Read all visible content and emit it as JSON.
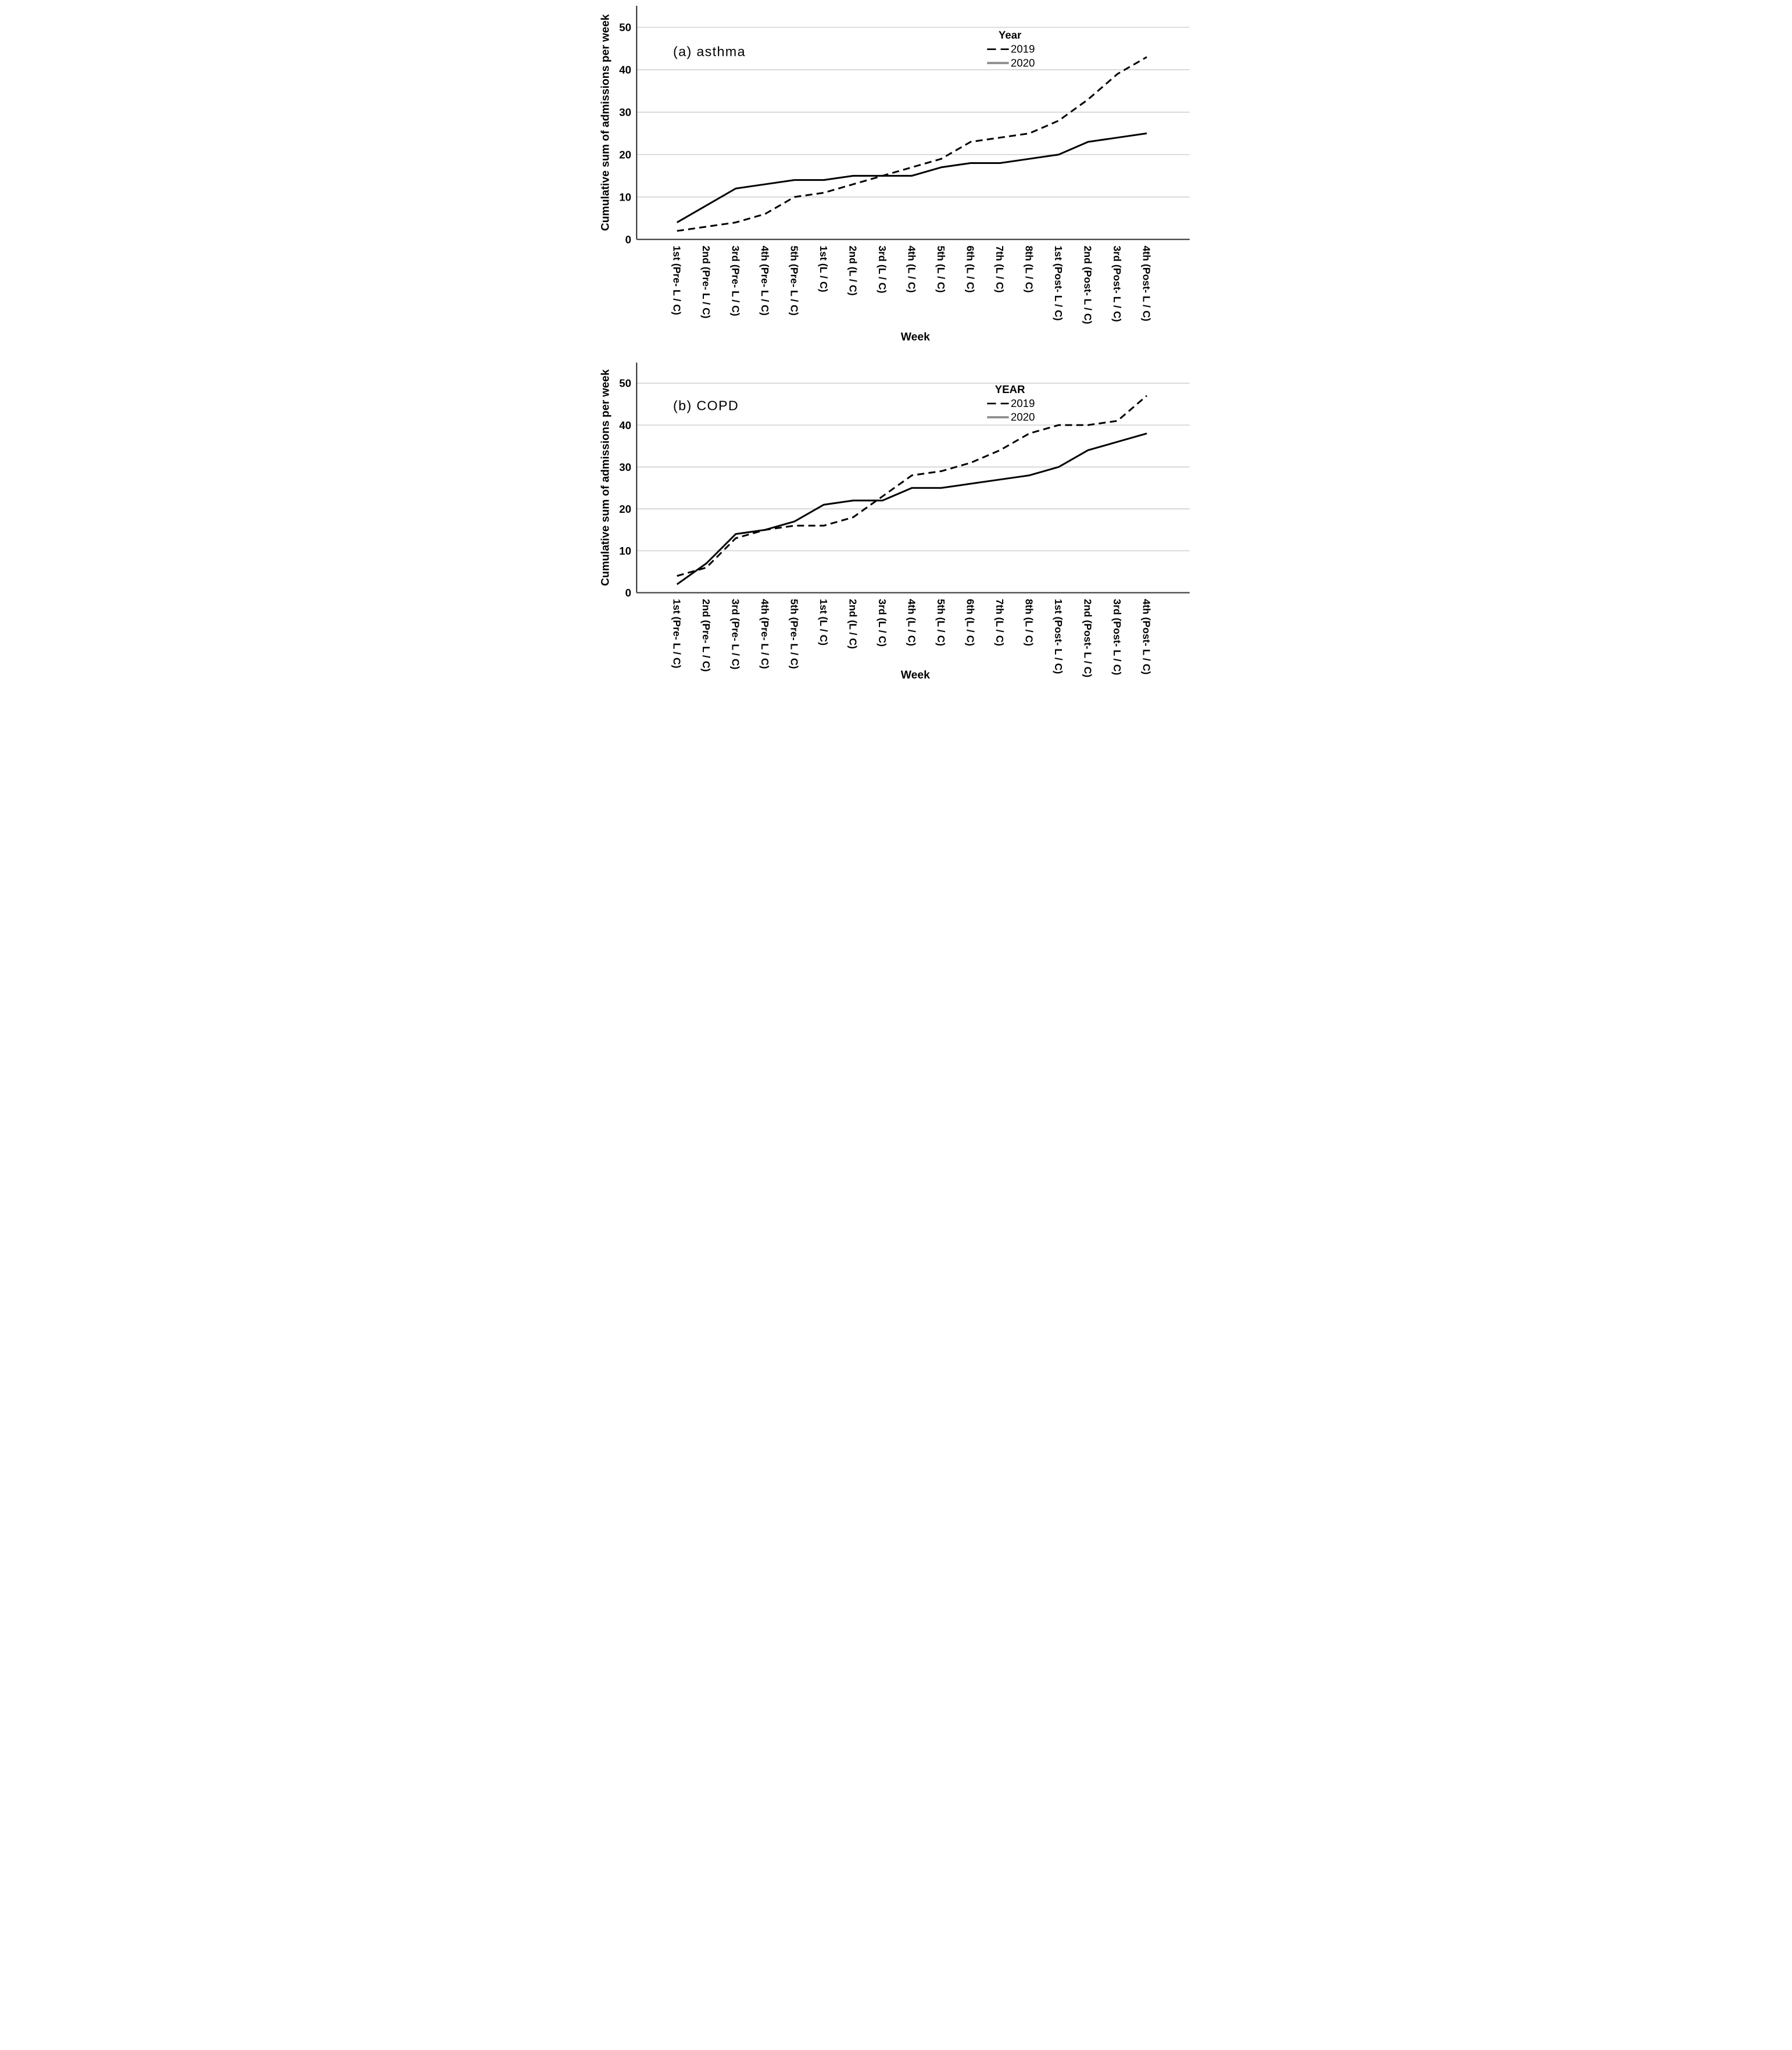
{
  "figure": {
    "description_visible_text_only": "Two stacked line charts comparing cumulative weekly admissions in 2019 vs 2020"
  },
  "chart_data": [
    {
      "type": "line",
      "panel_label": "(a) asthma",
      "legend_title": "Year",
      "xlabel": "Week",
      "ylabel": "Cumulative sum of admissions per week",
      "ylim": [
        0,
        55
      ],
      "y_ticks": [
        0,
        10,
        20,
        30,
        40,
        50
      ],
      "grid": "horizontal-gridlines-on",
      "legend_position": "inside-top-right",
      "categories": [
        "1st (Pre- L / C)",
        "2nd (Pre- L / C)",
        "3rd (Pre- L / C)",
        "4th (Pre- L / C)",
        "5th (Pre- L / C)",
        "1st (L / C)",
        "2nd (L / C)",
        "3rd (L / C)",
        "4th (L / C)",
        "5th (L / C)",
        "6th (L / C)",
        "7th (L / C)",
        "8th (L / C)",
        "1st (Post- L / C)",
        "2nd (Post- L / C)",
        "3rd (Post- L / C)",
        "4th (Post- L / C)"
      ],
      "series": [
        {
          "name": "2019",
          "line_style": "dashed",
          "color": "#000000",
          "legend_swatch_color": "#000000",
          "values": [
            2,
            3,
            4,
            6,
            10,
            11,
            13,
            15,
            17,
            19,
            23,
            24,
            25,
            28,
            33,
            39,
            43
          ]
        },
        {
          "name": "2020",
          "line_style": "solid",
          "color": "#000000",
          "legend_swatch_color": "#8a8a8a",
          "values": [
            4,
            8,
            12,
            13,
            14,
            14,
            15,
            15,
            15,
            17,
            18,
            18,
            19,
            20,
            23,
            24,
            25
          ]
        }
      ]
    },
    {
      "type": "line",
      "panel_label": "(b) COPD",
      "legend_title": "YEAR",
      "xlabel": "Week",
      "ylabel": "Cumulative sum of admissions per week",
      "ylim": [
        0,
        55
      ],
      "y_ticks": [
        0,
        10,
        20,
        30,
        40,
        50
      ],
      "grid": "horizontal-gridlines-on",
      "legend_position": "inside-top-right",
      "categories": [
        "1st (Pre- L / C)",
        "2nd (Pre- L / C)",
        "3rd (Pre- L / C)",
        "4th (Pre- L / C)",
        "5th (Pre- L / C)",
        "1st (L / C)",
        "2nd (L / C)",
        "3rd (L / C)",
        "4th (L / C)",
        "5th (L / C)",
        "6th (L / C)",
        "7th (L / C)",
        "8th (L / C)",
        "1st (Post- L / C)",
        "2nd (Post- L / C)",
        "3rd (Post- L / C)",
        "4th (Post- L / C)"
      ],
      "series": [
        {
          "name": "2019",
          "line_style": "dashed",
          "color": "#000000",
          "legend_swatch_color": "#000000",
          "values": [
            4,
            6,
            13,
            15,
            16,
            16,
            18,
            23,
            28,
            29,
            31,
            34,
            38,
            40,
            40,
            41,
            47
          ]
        },
        {
          "name": "2020",
          "line_style": "solid",
          "color": "#000000",
          "legend_swatch_color": "#8a8a8a",
          "values": [
            2,
            7,
            14,
            15,
            17,
            21,
            22,
            22,
            25,
            25,
            26,
            27,
            28,
            30,
            34,
            36,
            38
          ]
        }
      ]
    }
  ]
}
